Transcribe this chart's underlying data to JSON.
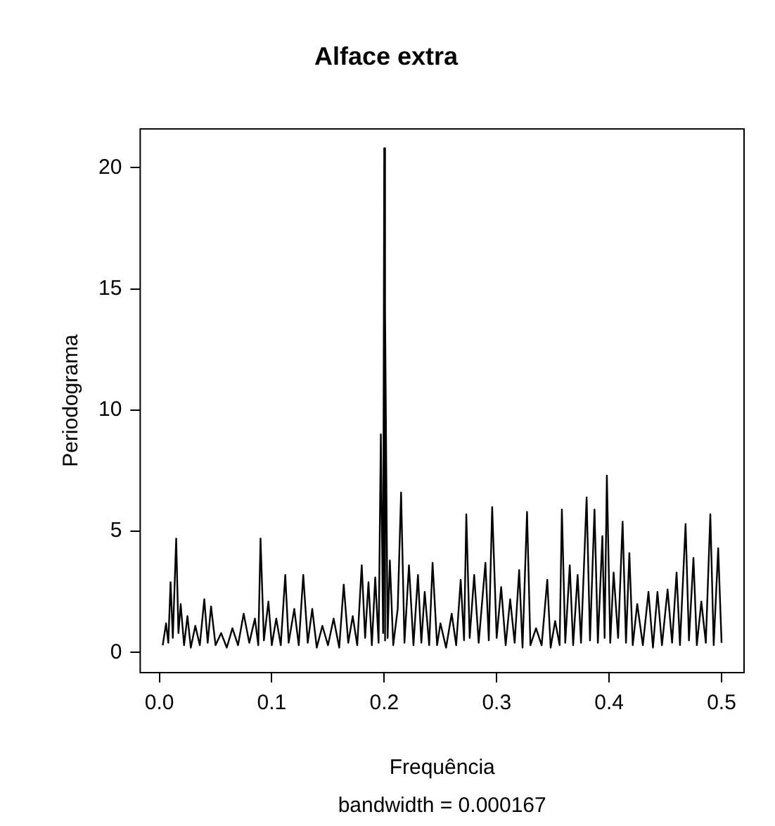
{
  "chart_data": {
    "type": "line",
    "title": "Alface extra",
    "xlabel": "Frequência",
    "ylabel": "Periodograma",
    "annotations": [
      "bandwidth = 0.000167"
    ],
    "xlim": [
      -0.017,
      0.52
    ],
    "ylim": [
      -0.83,
      21.6
    ],
    "xticks": [
      {
        "value": 0,
        "label": "0.0"
      },
      0.1,
      0.2,
      0.3,
      0.4,
      0.5
    ],
    "yticks": [
      0,
      5,
      10,
      15,
      20
    ],
    "grid": false,
    "legend": false,
    "marker": "none",
    "line_style": "solid",
    "series": [
      {
        "color": "#000000",
        "x": [
          0.003,
          0.006,
          0.008,
          0.01,
          0.012,
          0.015,
          0.017,
          0.019,
          0.022,
          0.025,
          0.028,
          0.032,
          0.036,
          0.04,
          0.043,
          0.046,
          0.05,
          0.055,
          0.06,
          0.065,
          0.07,
          0.075,
          0.08,
          0.085,
          0.088,
          0.09,
          0.093,
          0.097,
          0.1,
          0.104,
          0.108,
          0.112,
          0.115,
          0.12,
          0.124,
          0.128,
          0.132,
          0.136,
          0.14,
          0.145,
          0.15,
          0.155,
          0.16,
          0.164,
          0.168,
          0.172,
          0.176,
          0.18,
          0.183,
          0.186,
          0.189,
          0.192,
          0.195,
          0.197,
          0.199,
          0.2,
          0.2005,
          0.201,
          0.203,
          0.205,
          0.208,
          0.212,
          0.215,
          0.218,
          0.222,
          0.226,
          0.23,
          0.233,
          0.236,
          0.24,
          0.243,
          0.247,
          0.25,
          0.255,
          0.26,
          0.264,
          0.268,
          0.271,
          0.273,
          0.276,
          0.28,
          0.284,
          0.29,
          0.293,
          0.296,
          0.3,
          0.304,
          0.308,
          0.312,
          0.316,
          0.32,
          0.323,
          0.327,
          0.33,
          0.335,
          0.34,
          0.345,
          0.348,
          0.352,
          0.356,
          0.358,
          0.361,
          0.365,
          0.368,
          0.372,
          0.375,
          0.38,
          0.383,
          0.387,
          0.39,
          0.394,
          0.396,
          0.398,
          0.401,
          0.404,
          0.408,
          0.412,
          0.415,
          0.418,
          0.421,
          0.425,
          0.43,
          0.435,
          0.439,
          0.443,
          0.447,
          0.452,
          0.456,
          0.46,
          0.463,
          0.468,
          0.471,
          0.475,
          0.478,
          0.482,
          0.486,
          0.49,
          0.493,
          0.497,
          0.5
        ],
        "values": [
          0.3,
          1.2,
          0.4,
          2.9,
          0.6,
          4.7,
          0.8,
          2.0,
          0.3,
          1.5,
          0.2,
          1.1,
          0.3,
          2.2,
          0.4,
          1.9,
          0.3,
          0.8,
          0.2,
          1.0,
          0.3,
          1.6,
          0.4,
          1.4,
          0.3,
          4.7,
          0.5,
          2.1,
          0.3,
          1.4,
          0.3,
          3.2,
          0.4,
          1.8,
          0.3,
          3.2,
          0.4,
          1.8,
          0.2,
          1.1,
          0.3,
          1.4,
          0.2,
          2.8,
          0.4,
          1.5,
          0.3,
          3.6,
          0.6,
          2.9,
          0.3,
          3.1,
          0.4,
          9.0,
          0.8,
          20.8,
          0.5,
          14.1,
          0.6,
          3.8,
          0.3,
          1.8,
          6.6,
          0.4,
          3.6,
          0.3,
          3.2,
          0.4,
          2.5,
          0.3,
          3.7,
          0.3,
          1.2,
          0.2,
          1.6,
          0.3,
          3.0,
          0.5,
          5.7,
          0.6,
          3.2,
          0.4,
          3.7,
          0.5,
          6.0,
          0.6,
          2.7,
          0.3,
          2.2,
          0.4,
          3.4,
          0.2,
          5.8,
          0.3,
          1.0,
          0.3,
          3.0,
          0.2,
          1.3,
          0.3,
          5.9,
          0.4,
          3.6,
          0.3,
          3.2,
          0.4,
          6.4,
          0.5,
          5.9,
          0.4,
          4.8,
          0.6,
          7.3,
          0.4,
          3.3,
          0.6,
          5.4,
          0.4,
          4.1,
          0.3,
          2.0,
          0.3,
          2.5,
          0.2,
          2.5,
          0.3,
          2.6,
          0.4,
          3.3,
          0.3,
          5.3,
          0.5,
          3.9,
          0.3,
          2.1,
          0.4,
          5.7,
          0.3,
          4.3,
          0.4
        ]
      }
    ]
  }
}
